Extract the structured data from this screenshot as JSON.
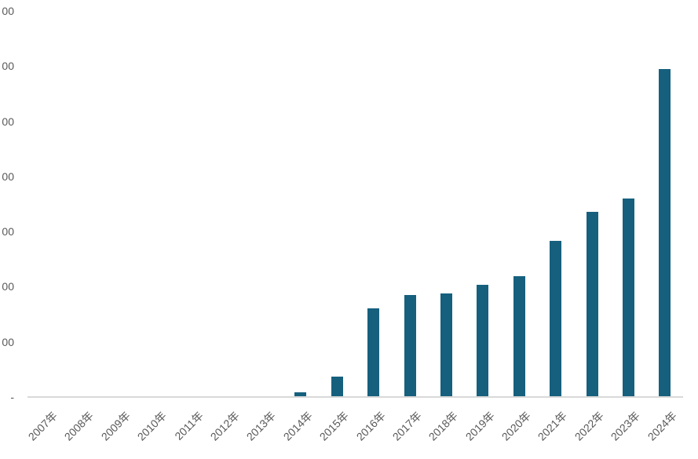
{
  "chart_data": {
    "type": "bar",
    "title": "",
    "xlabel": "",
    "ylabel": "",
    "categories": [
      "2007年",
      "2008年",
      "2009年",
      "2010年",
      "2011年",
      "2012年",
      "2013年",
      "2014年",
      "2015年",
      "2016年",
      "2017年",
      "2018年",
      "2019年",
      "2020年",
      "2021年",
      "2022年",
      "2023年",
      "2024年"
    ],
    "values": [
      0,
      0,
      0,
      0,
      0,
      0,
      0,
      7,
      36,
      159,
      183,
      187,
      202,
      217,
      281,
      334,
      359,
      594
    ],
    "ylim": [
      0,
      700
    ],
    "y_tick_interval": 100,
    "y_axis_displayed_tick_labels_top_to_bottom": [
      "00",
      "00",
      "00",
      "00",
      "00",
      "00",
      "00"
    ],
    "y_axis_zero_marker": "-",
    "x_label_rotation_deg": -45,
    "gridlines": false,
    "legend_position": "none",
    "colors": {
      "bar": "#16607e",
      "axis_line": "#d9d9d9",
      "tick_label": "#595959",
      "background": "#ffffff"
    }
  }
}
